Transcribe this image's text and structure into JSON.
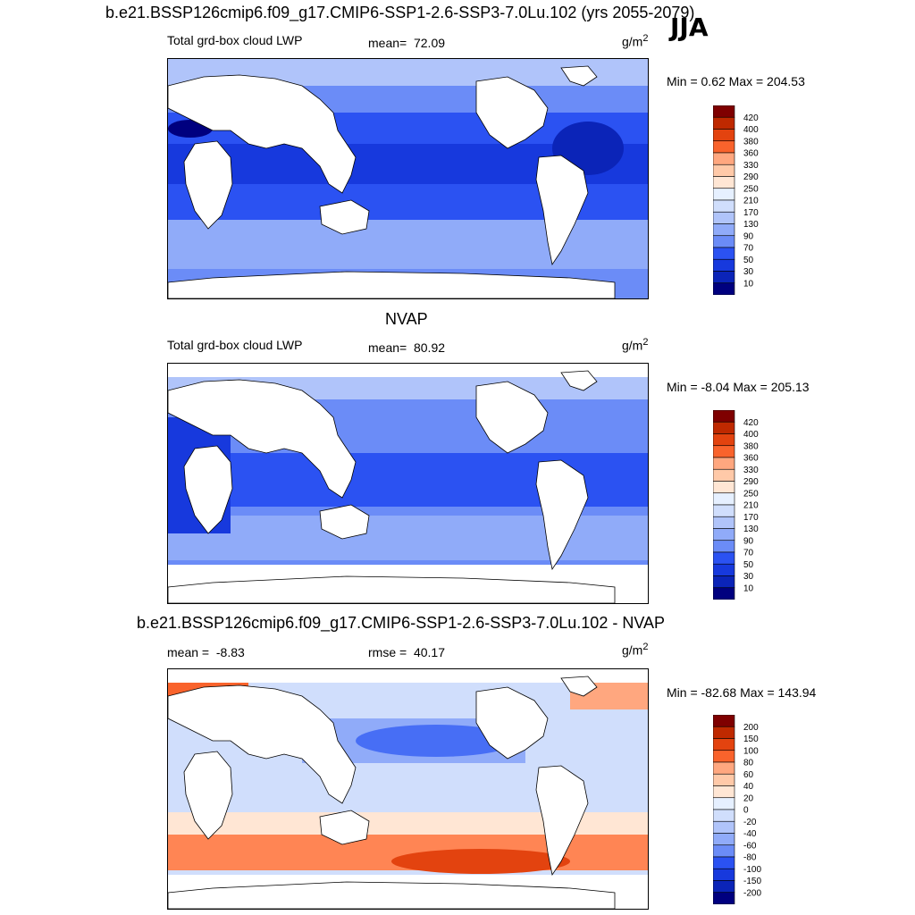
{
  "header": {
    "title": "b.e21.BSSP126cmip6.f09_g17.CMIP6-SSP1-2.6-SSP3-7.0Lu.102 (yrs 2055-2079)",
    "season": "JJA"
  },
  "colors": {
    "land": "#ffffff",
    "coast": "#000000",
    "scale_abs": [
      "#00007f",
      "#0b24b8",
      "#1739dd",
      "#2b52f2",
      "#476ef5",
      "#6b8cf7",
      "#90abf9",
      "#b0c4fa",
      "#d0defc",
      "#e6f0ff",
      "#ffe6d4",
      "#ffc9a8",
      "#ffa77f",
      "#ff8554",
      "#f9632c",
      "#e3430f",
      "#bf2900",
      "#7f0000"
    ],
    "scale_diff": [
      "#00007f",
      "#0b24b8",
      "#1739dd",
      "#2b52f2",
      "#476ef5",
      "#6b8cf7",
      "#90abf9",
      "#b0c4fa",
      "#d0defc",
      "#e6f0ff",
      "#ffe6d4",
      "#ffc9a8",
      "#ffa77f",
      "#ff8554",
      "#f9632c",
      "#e3430f",
      "#bf2900",
      "#7f0000"
    ]
  },
  "panels": [
    {
      "id": "model",
      "variable": "Total grd-box cloud LWP",
      "stat_label": "mean=",
      "stat_value": "72.09",
      "units": "g/m",
      "units_sup": "2",
      "minmax": "Min =   0.62 Max = 204.53",
      "colorbar_levels": [
        "420",
        "400",
        "380",
        "360",
        "330",
        "290",
        "250",
        "210",
        "170",
        "130",
        "90",
        "70",
        "50",
        "30",
        "10"
      ]
    },
    {
      "id": "obs",
      "heading": "NVAP",
      "variable": "Total grd-box cloud LWP",
      "stat_label": "mean=",
      "stat_value": "80.92",
      "units": "g/m",
      "units_sup": "2",
      "minmax": "Min =  -8.04 Max = 205.13",
      "colorbar_levels": [
        "420",
        "400",
        "380",
        "360",
        "330",
        "290",
        "250",
        "210",
        "170",
        "130",
        "90",
        "70",
        "50",
        "30",
        "10"
      ]
    },
    {
      "id": "diff",
      "heading": "b.e21.BSSP126cmip6.f09_g17.CMIP6-SSP1-2.6-SSP3-7.0Lu.102 - NVAP",
      "mean_label": "mean =",
      "mean_value": "-8.83",
      "rmse_label": "rmse =",
      "rmse_value": "40.17",
      "units": "g/m",
      "units_sup": "2",
      "minmax": "Min = -82.68 Max = 143.94",
      "colorbar_levels": [
        "200",
        "150",
        "100",
        "80",
        "60",
        "40",
        "20",
        "0",
        "-20",
        "-40",
        "-60",
        "-80",
        "-100",
        "-150",
        "-200"
      ]
    }
  ]
}
